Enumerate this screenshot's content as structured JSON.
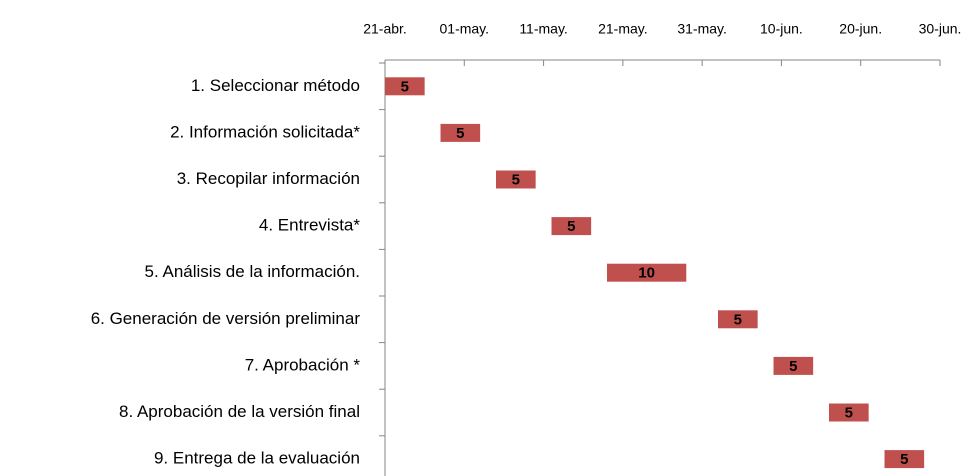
{
  "chart_data": {
    "type": "gantt",
    "categories": [
      "1. Seleccionar método",
      "2. Información solicitada*",
      "3. Recopilar información",
      "4. Entrevista*",
      "5. Análisis de la información.",
      "6. Generación de versión preliminar",
      "7. Aprobación *",
      "8. Aprobación de la versión final ",
      "9. Entrega de la evaluación"
    ],
    "starts": [
      0,
      7,
      14,
      21,
      28,
      42,
      49,
      56,
      63
    ],
    "values": [
      5,
      5,
      5,
      5,
      10,
      5,
      5,
      5,
      5
    ],
    "color": "#c0504d",
    "xlim": [
      0,
      70
    ],
    "xticks": [
      {
        "value": 0,
        "label": "21-abr."
      },
      {
        "value": 10,
        "label": "01-may."
      },
      {
        "value": 20,
        "label": "11-may."
      },
      {
        "value": 30,
        "label": "21-may."
      },
      {
        "value": 40,
        "label": "31-may."
      },
      {
        "value": 50,
        "label": "10-jun."
      },
      {
        "value": 60,
        "label": "20-jun."
      },
      {
        "value": 70,
        "label": "30-jun."
      }
    ]
  }
}
